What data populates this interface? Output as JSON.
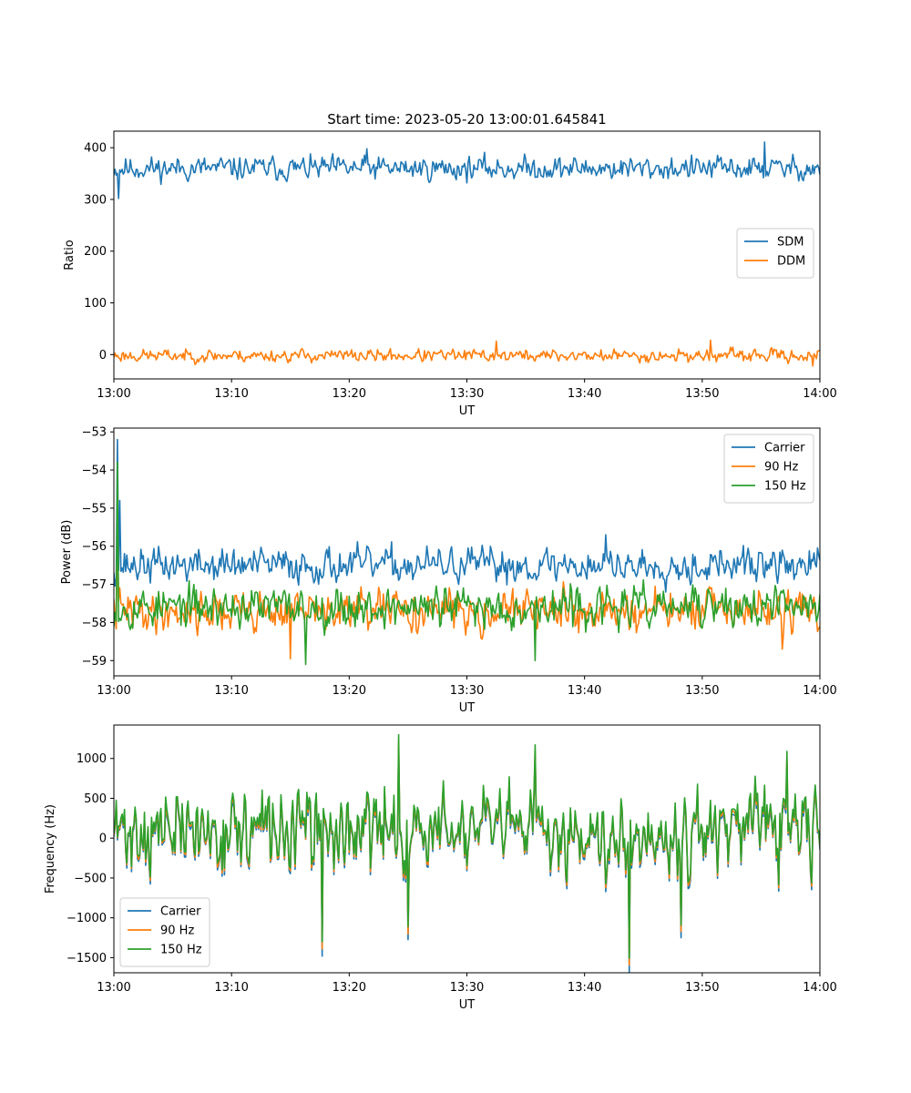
{
  "figure": {
    "title": "Start time: 2023-05-20 13:00:01.645841"
  },
  "chart_data": [
    {
      "type": "line",
      "title": "Start time: 2023-05-20 13:00:01.645841",
      "xlabel": "UT",
      "ylabel": "Ratio",
      "x_range_minutes": [
        0,
        60
      ],
      "xticks": [
        {
          "value": 0,
          "label": "13:00"
        },
        {
          "value": 10,
          "label": "13:10"
        },
        {
          "value": 20,
          "label": "13:20"
        },
        {
          "value": 30,
          "label": "13:30"
        },
        {
          "value": 40,
          "label": "13:40"
        },
        {
          "value": 50,
          "label": "13:50"
        },
        {
          "value": 60,
          "label": "14:00"
        }
      ],
      "ylim": [
        -47,
        432
      ],
      "yticks": [
        {
          "value": 0,
          "label": "0"
        },
        {
          "value": 100,
          "label": "100"
        },
        {
          "value": 200,
          "label": "200"
        },
        {
          "value": 300,
          "label": "300"
        },
        {
          "value": 400,
          "label": "400"
        }
      ],
      "legend_position": "center-right",
      "series": [
        {
          "name": "SDM",
          "color": "#1f77b4",
          "mean": 360,
          "spread": 15,
          "seed": 11,
          "spikes": [
            {
              "x": 0.4,
              "y": 302
            },
            {
              "x": 55.3,
              "y": 411
            },
            {
              "x": 21.5,
              "y": 398
            }
          ]
        },
        {
          "name": "DDM",
          "color": "#ff7f0e",
          "mean": -2,
          "spread": 8,
          "seed": 23,
          "spikes": [
            {
              "x": 50.7,
              "y": 28
            },
            {
              "x": 32.5,
              "y": 26
            },
            {
              "x": 59.4,
              "y": -22
            }
          ]
        }
      ]
    },
    {
      "type": "line",
      "xlabel": "UT",
      "ylabel": "Power (dB)",
      "x_range_minutes": [
        0,
        60
      ],
      "xticks": [
        {
          "value": 0,
          "label": "13:00"
        },
        {
          "value": 10,
          "label": "13:10"
        },
        {
          "value": 20,
          "label": "13:20"
        },
        {
          "value": 30,
          "label": "13:30"
        },
        {
          "value": 40,
          "label": "13:40"
        },
        {
          "value": 50,
          "label": "13:50"
        },
        {
          "value": 60,
          "label": "14:00"
        }
      ],
      "ylim": [
        -59.4,
        -52.9
      ],
      "yticks": [
        {
          "value": -59,
          "label": "−59"
        },
        {
          "value": -58,
          "label": "−58"
        },
        {
          "value": -57,
          "label": "−57"
        },
        {
          "value": -56,
          "label": "−56"
        },
        {
          "value": -55,
          "label": "−55"
        },
        {
          "value": -54,
          "label": "−54"
        },
        {
          "value": -53,
          "label": "−53"
        }
      ],
      "legend_position": "upper-right",
      "series": [
        {
          "name": "Carrier",
          "color": "#1f77b4",
          "mean": -56.5,
          "spread": 0.3,
          "seed": 37,
          "spikes": [
            {
              "x": 0.25,
              "y": -53.2
            },
            {
              "x": 0.5,
              "y": -54.8
            },
            {
              "x": 41.8,
              "y": -55.7
            }
          ]
        },
        {
          "name": "90 Hz",
          "color": "#ff7f0e",
          "mean": -57.7,
          "spread": 0.35,
          "seed": 41,
          "spikes": [
            {
              "x": 0.3,
              "y": -55.2
            },
            {
              "x": 15.0,
              "y": -58.95
            },
            {
              "x": 56.8,
              "y": -58.7
            }
          ]
        },
        {
          "name": "150 Hz",
          "color": "#2ca02c",
          "mean": -57.6,
          "spread": 0.35,
          "seed": 53,
          "spikes": [
            {
              "x": 0.3,
              "y": -53.8
            },
            {
              "x": 16.3,
              "y": -59.1
            },
            {
              "x": 35.8,
              "y": -59.0
            }
          ]
        }
      ]
    },
    {
      "type": "line",
      "xlabel": "UT",
      "ylabel": "Frequency (Hz)",
      "x_range_minutes": [
        0,
        60
      ],
      "xticks": [
        {
          "value": 0,
          "label": "13:00"
        },
        {
          "value": 10,
          "label": "13:10"
        },
        {
          "value": 20,
          "label": "13:20"
        },
        {
          "value": 30,
          "label": "13:30"
        },
        {
          "value": 40,
          "label": "13:40"
        },
        {
          "value": 50,
          "label": "13:50"
        },
        {
          "value": 60,
          "label": "14:00"
        }
      ],
      "ylim": [
        -1690,
        1420
      ],
      "yticks": [
        {
          "value": -1500,
          "label": "−1500"
        },
        {
          "value": -1000,
          "label": "−1000"
        },
        {
          "value": -500,
          "label": "−500"
        },
        {
          "value": 0,
          "label": "0"
        },
        {
          "value": 500,
          "label": "500"
        },
        {
          "value": 1000,
          "label": "1000"
        }
      ],
      "legend_position": "lower-left",
      "series": [
        {
          "name": "Carrier",
          "color": "#1f77b4",
          "offset": -80,
          "seed": 71
        },
        {
          "name": "90 Hz",
          "color": "#ff7f0e",
          "offset": -40,
          "seed": 71
        },
        {
          "name": "150 Hz",
          "color": "#2ca02c",
          "offset": 0,
          "seed": 71
        }
      ],
      "base": {
        "mean": 100,
        "spread": 330,
        "spikes": [
          {
            "x": 24.2,
            "y": 1300
          },
          {
            "x": 43.8,
            "y": -1500
          },
          {
            "x": 17.7,
            "y": -1300
          },
          {
            "x": 25.0,
            "y": -1120
          },
          {
            "x": 48.2,
            "y": -1100
          },
          {
            "x": 35.8,
            "y": 1180
          },
          {
            "x": 57.2,
            "y": 1080
          }
        ]
      }
    }
  ]
}
